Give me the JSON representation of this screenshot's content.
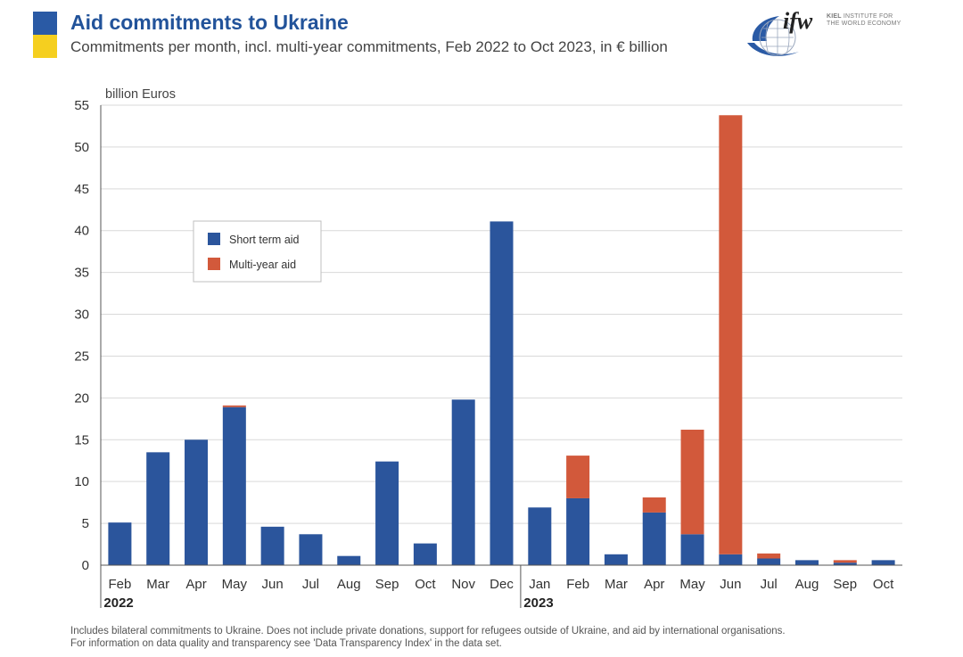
{
  "header": {
    "title": "Aid commitments to Ukraine",
    "subtitle": "Commitments per month, incl. multi-year commitments, Feb 2022 to Oct 2023, in € billion"
  },
  "logo": {
    "mark": "ifw",
    "org_line1": "KIEL INSTITUTE FOR",
    "org_line2": "THE WORLD ECONOMY",
    "org_bold": "KIEL"
  },
  "colors": {
    "short_term": "#2b559c",
    "multi_year": "#d2593b",
    "title": "#22539a",
    "flag_blue": "#2a5aa5",
    "flag_yellow": "#f5cf1f"
  },
  "footnote": {
    "line1": "Includes bilateral commitments to Ukraine. Does not include private donations, support for refugees outside of Ukraine, and aid by international organisations.",
    "line2": "For information on data quality and transparency see 'Data Transparency Index' in the data set."
  },
  "chart_data": {
    "type": "bar",
    "stacked": true,
    "title": "Aid commitments to Ukraine",
    "ylabel": "billion Euros",
    "ylim": [
      0,
      55
    ],
    "yticks": [
      0,
      5,
      10,
      15,
      20,
      25,
      30,
      35,
      40,
      45,
      50,
      55
    ],
    "grid": true,
    "legend_position": "upper-left",
    "categories": [
      "Feb",
      "Mar",
      "Apr",
      "May",
      "Jun",
      "Jul",
      "Aug",
      "Sep",
      "Oct",
      "Nov",
      "Dec",
      "Jan",
      "Feb",
      "Mar",
      "Apr",
      "May",
      "Jun",
      "Jul",
      "Aug",
      "Sep",
      "Oct"
    ],
    "year_labels": [
      {
        "label": "2022",
        "start_index": 0
      },
      {
        "label": "2023",
        "start_index": 11
      }
    ],
    "series": [
      {
        "name": "Short term aid",
        "color": "#2b559c",
        "values": [
          5.1,
          13.5,
          15.0,
          18.9,
          4.6,
          3.7,
          1.1,
          12.4,
          2.6,
          19.8,
          41.1,
          6.9,
          8.0,
          1.3,
          6.3,
          3.7,
          1.3,
          0.8,
          0.6,
          0.3,
          0.6
        ]
      },
      {
        "name": "Multi-year aid",
        "color": "#d2593b",
        "values": [
          0,
          0,
          0,
          0.2,
          0,
          0,
          0,
          0,
          0,
          0,
          0,
          0,
          5.1,
          0,
          1.8,
          12.5,
          52.5,
          0.6,
          0,
          0.3,
          0
        ]
      }
    ]
  }
}
